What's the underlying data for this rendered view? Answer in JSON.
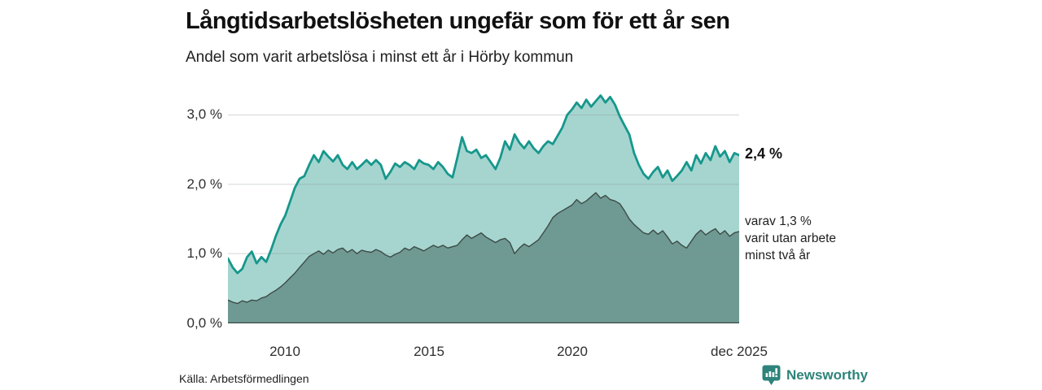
{
  "header": {
    "title": "Långtidsarbetslösheten ungefär som för ett år sen",
    "subtitle": "Andel som varit arbetslösa i minst ett år i Hörby kommun"
  },
  "chart_data": {
    "type": "area",
    "title": "Långtidsarbetslösheten ungefär som för ett år sen",
    "subtitle": "Andel som varit arbetslösa i minst ett år i Hörby kommun",
    "x_start_year": 2008,
    "points_per_year": 6,
    "x_tick_labels": [
      "2010",
      "2015",
      "2020",
      "dec 2025"
    ],
    "x_tick_years": [
      2010,
      2015,
      2020,
      2025.83
    ],
    "y_tick_labels": [
      "3,0 %",
      "2,0 %",
      "1,0 %",
      "0,0 %"
    ],
    "y_tick_values": [
      3.0,
      2.0,
      1.0,
      0.0
    ],
    "ylim": [
      0,
      3.32
    ],
    "grid": true,
    "legend_position": "end-of-line-annotations",
    "series": [
      {
        "name": "Arbetslösa minst ett år",
        "line_color": "#17978c",
        "fill_color": "#a6d5cf",
        "line_width": 2.8,
        "end_value_label": "2,4 %",
        "values": [
          0.93,
          0.8,
          0.72,
          0.78,
          0.95,
          1.03,
          0.86,
          0.95,
          0.88,
          1.05,
          1.25,
          1.42,
          1.55,
          1.75,
          1.95,
          2.08,
          2.12,
          2.28,
          2.42,
          2.32,
          2.48,
          2.4,
          2.33,
          2.42,
          2.28,
          2.22,
          2.32,
          2.22,
          2.28,
          2.35,
          2.28,
          2.35,
          2.28,
          2.08,
          2.18,
          2.3,
          2.25,
          2.32,
          2.28,
          2.22,
          2.35,
          2.3,
          2.28,
          2.22,
          2.32,
          2.25,
          2.15,
          2.1,
          2.38,
          2.68,
          2.48,
          2.45,
          2.5,
          2.38,
          2.42,
          2.32,
          2.22,
          2.38,
          2.62,
          2.5,
          2.72,
          2.6,
          2.52,
          2.62,
          2.52,
          2.45,
          2.55,
          2.62,
          2.58,
          2.7,
          2.82,
          3.0,
          3.08,
          3.18,
          3.1,
          3.22,
          3.12,
          3.2,
          3.28,
          3.18,
          3.26,
          3.15,
          2.98,
          2.85,
          2.72,
          2.45,
          2.28,
          2.15,
          2.08,
          2.18,
          2.25,
          2.1,
          2.2,
          2.05,
          2.12,
          2.2,
          2.32,
          2.2,
          2.42,
          2.3,
          2.45,
          2.35,
          2.55,
          2.4,
          2.48,
          2.32,
          2.45,
          2.42
        ]
      },
      {
        "name": "varav utan arbete minst två år",
        "line_color": "#3d4b47",
        "fill_color": "#6f9a93",
        "line_width": 1.4,
        "end_value_label": "varav 1,3 %",
        "values": [
          0.33,
          0.3,
          0.28,
          0.32,
          0.3,
          0.33,
          0.32,
          0.36,
          0.38,
          0.43,
          0.47,
          0.52,
          0.58,
          0.65,
          0.72,
          0.8,
          0.88,
          0.96,
          1.0,
          1.04,
          0.99,
          1.05,
          1.01,
          1.06,
          1.08,
          1.02,
          1.06,
          1.0,
          1.05,
          1.03,
          1.02,
          1.06,
          1.03,
          0.98,
          0.95,
          0.99,
          1.02,
          1.08,
          1.05,
          1.1,
          1.07,
          1.04,
          1.08,
          1.12,
          1.09,
          1.12,
          1.08,
          1.1,
          1.12,
          1.2,
          1.27,
          1.22,
          1.26,
          1.3,
          1.24,
          1.2,
          1.16,
          1.2,
          1.22,
          1.16,
          1.0,
          1.08,
          1.14,
          1.1,
          1.15,
          1.2,
          1.3,
          1.4,
          1.52,
          1.58,
          1.62,
          1.66,
          1.7,
          1.78,
          1.72,
          1.76,
          1.82,
          1.88,
          1.8,
          1.84,
          1.78,
          1.76,
          1.72,
          1.62,
          1.5,
          1.42,
          1.36,
          1.3,
          1.28,
          1.34,
          1.28,
          1.33,
          1.24,
          1.14,
          1.18,
          1.12,
          1.08,
          1.18,
          1.28,
          1.34,
          1.27,
          1.32,
          1.36,
          1.28,
          1.33,
          1.25,
          1.3,
          1.32
        ]
      }
    ],
    "annotations": {
      "primary": "2,4 %",
      "secondary_lines": [
        "varav 1,3 %",
        "varit utan arbete",
        "minst två år"
      ]
    }
  },
  "axes": {
    "y_labels": [
      "3,0 %",
      "2,0 %",
      "1,0 %",
      "0,0 %"
    ],
    "x_labels": [
      "2010",
      "2015",
      "2020",
      "dec 2025"
    ]
  },
  "footer": {
    "source": "Källa: Arbetsförmedlingen",
    "brand": "Newsworthy"
  },
  "colors": {
    "line_total": "#17978c",
    "fill_total": "#a6d5cf",
    "line_two_year": "#3d4b47",
    "fill_two_year": "#6f9a93",
    "gridline": "rgba(130,140,140,0.35)",
    "baseline": "#3d4b47",
    "brand_teal": "#2e837a"
  }
}
